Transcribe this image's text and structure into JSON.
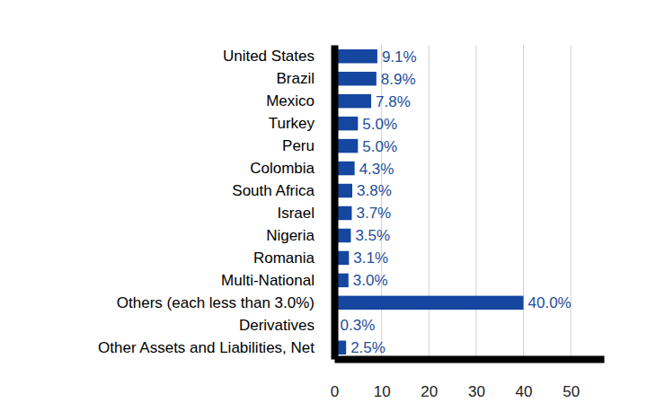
{
  "chart_data": {
    "type": "bar",
    "orientation": "horizontal",
    "categories": [
      "United States",
      "Brazil",
      "Mexico",
      "Turkey",
      "Peru",
      "Colombia",
      "South Africa",
      "Israel",
      "Nigeria",
      "Romania",
      "Multi-National",
      "Others (each less than 3.0%)",
      "Derivatives",
      "Other Assets and Liabilities, Net"
    ],
    "values": [
      9.1,
      8.9,
      7.8,
      5.0,
      5.0,
      4.3,
      3.8,
      3.7,
      3.5,
      3.1,
      3.0,
      40.0,
      0.3,
      2.5
    ],
    "value_labels": [
      "9.1%",
      "8.9%",
      "7.8%",
      "5.0%",
      "5.0%",
      "4.3%",
      "3.8%",
      "3.7%",
      "3.5%",
      "3.1%",
      "3.0%",
      "40.0%",
      "0.3%",
      "2.5%"
    ],
    "data_labels": true,
    "color": "#1546a0",
    "xlim": [
      0,
      57
    ],
    "xticks": [
      0,
      10,
      20,
      30,
      40,
      50
    ],
    "grid": true
  }
}
